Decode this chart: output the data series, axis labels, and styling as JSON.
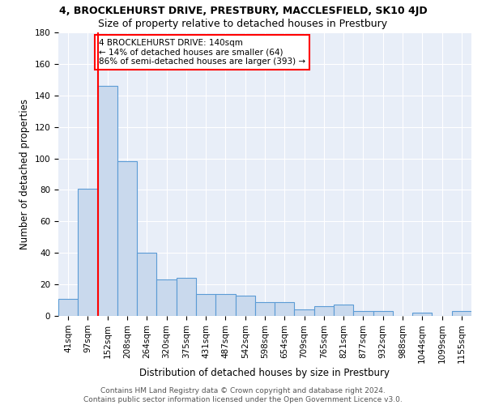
{
  "title1": "4, BROCKLEHURST DRIVE, PRESTBURY, MACCLESFIELD, SK10 4JD",
  "title2": "Size of property relative to detached houses in Prestbury",
  "xlabel": "Distribution of detached houses by size in Prestbury",
  "ylabel": "Number of detached properties",
  "categories": [
    "41sqm",
    "97sqm",
    "152sqm",
    "208sqm",
    "264sqm",
    "320sqm",
    "375sqm",
    "431sqm",
    "487sqm",
    "542sqm",
    "598sqm",
    "654sqm",
    "709sqm",
    "765sqm",
    "821sqm",
    "877sqm",
    "932sqm",
    "988sqm",
    "1044sqm",
    "1099sqm",
    "1155sqm"
  ],
  "values": [
    11,
    81,
    146,
    98,
    40,
    23,
    24,
    14,
    14,
    13,
    9,
    9,
    4,
    6,
    7,
    3,
    3,
    0,
    2,
    0,
    3
  ],
  "bar_color": "#c9d9ed",
  "bar_edge_color": "#5b9bd5",
  "red_line_index": 2,
  "annotation_line1": "4 BROCKLEHURST DRIVE: 140sqm",
  "annotation_line2": "← 14% of detached houses are smaller (64)",
  "annotation_line3": "86% of semi-detached houses are larger (393) →",
  "annotation_box_color": "white",
  "annotation_box_edge_color": "red",
  "ylim": [
    0,
    180
  ],
  "yticks": [
    0,
    20,
    40,
    60,
    80,
    100,
    120,
    140,
    160,
    180
  ],
  "footer1": "Contains HM Land Registry data © Crown copyright and database right 2024.",
  "footer2": "Contains public sector information licensed under the Open Government Licence v3.0.",
  "background_color": "#e8eef8",
  "grid_color": "white",
  "title1_fontsize": 9,
  "title2_fontsize": 9,
  "axis_label_fontsize": 8.5,
  "tick_fontsize": 7.5,
  "annotation_fontsize": 7.5,
  "footer_fontsize": 6.5
}
